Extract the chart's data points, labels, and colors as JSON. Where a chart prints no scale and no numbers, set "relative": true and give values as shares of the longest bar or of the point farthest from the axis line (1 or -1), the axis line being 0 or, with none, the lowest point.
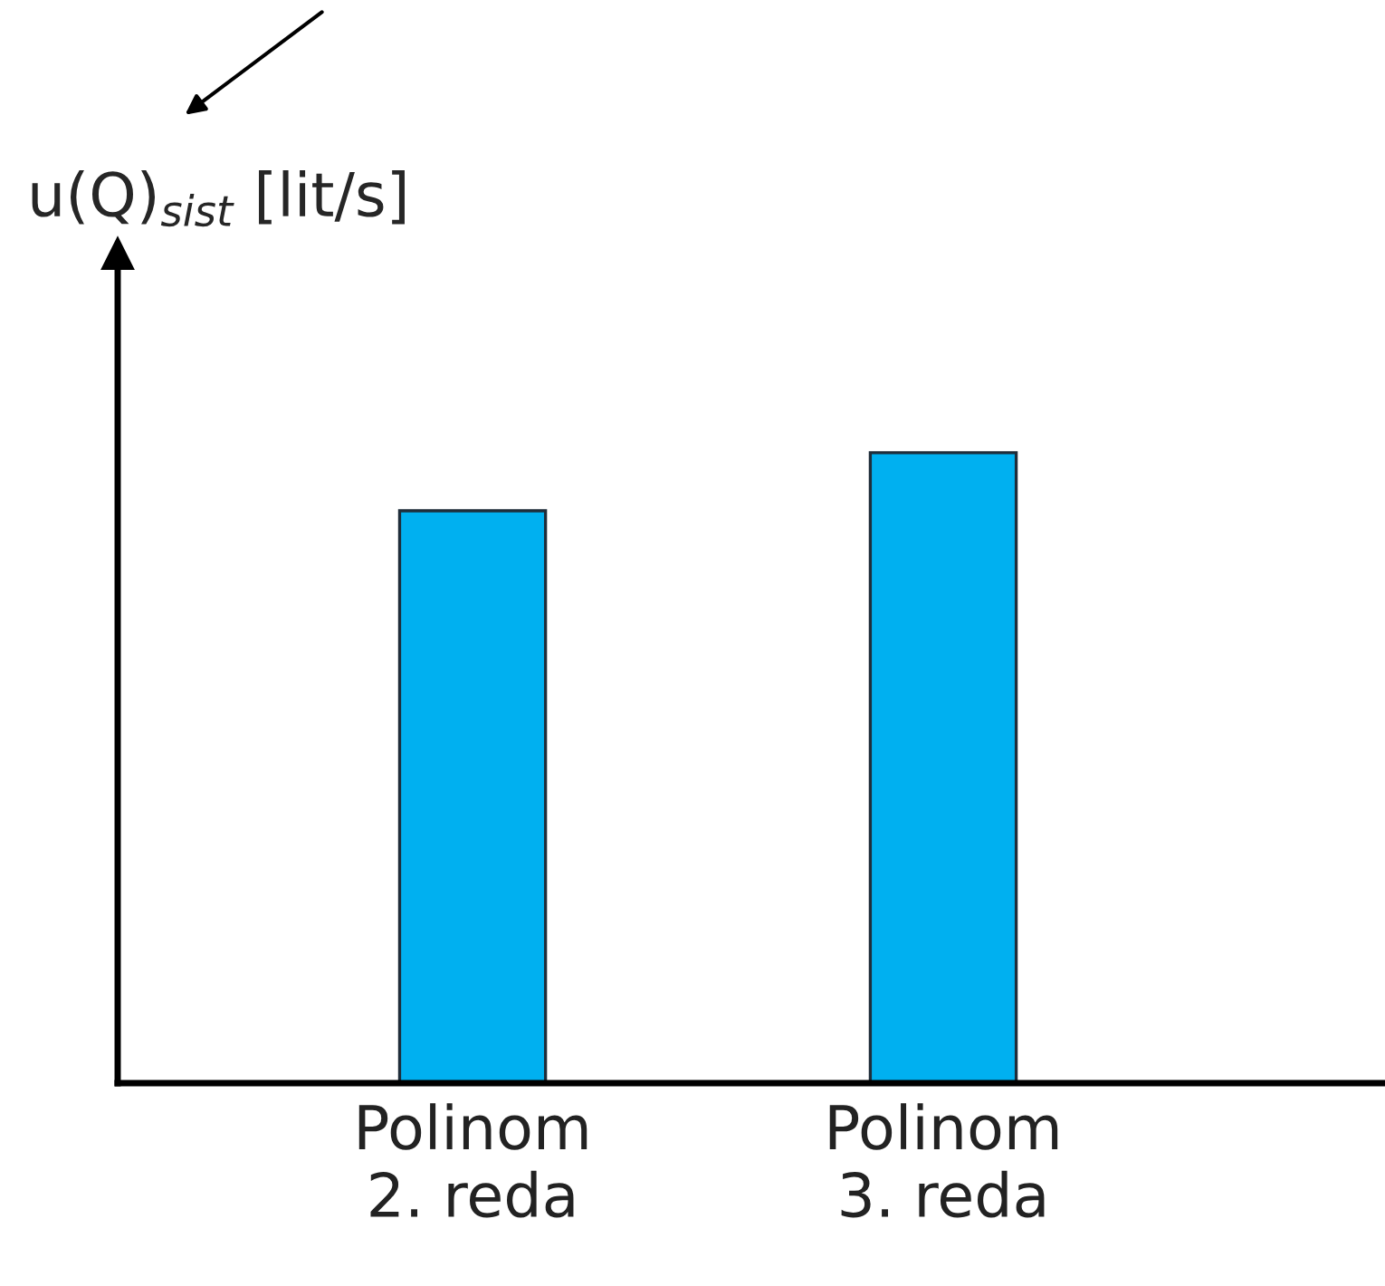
{
  "chart_data": {
    "type": "bar",
    "relative": true,
    "ylabel": "u(Q)$_{sist}$ [lit/s]",
    "categories": [
      "Polinom\n2. reda",
      "Polinom\n3. reda"
    ],
    "values": [
      0.908,
      1
    ],
    "color": "#00b0f0"
  }
}
